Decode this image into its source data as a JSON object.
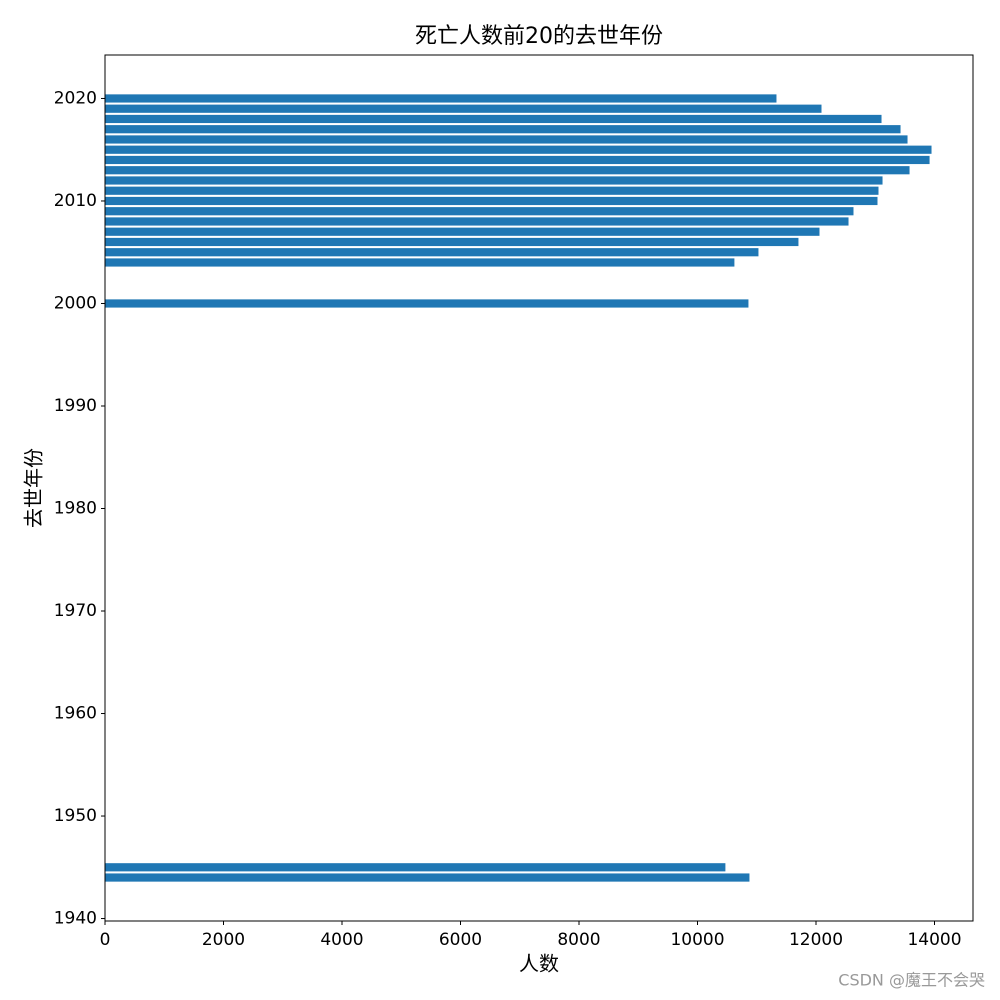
{
  "chart_data": {
    "type": "barh",
    "title": "死亡人数前20的去世年份",
    "xlabel": "人数",
    "ylabel": "去世年份",
    "y": [
      1944,
      1945,
      2000,
      2004,
      2005,
      2006,
      2007,
      2008,
      2009,
      2010,
      2011,
      2012,
      2013,
      2014,
      2015,
      2016,
      2017,
      2018,
      2019,
      2020
    ],
    "values": [
      10877,
      10471,
      10860,
      10623,
      11029,
      11704,
      12059,
      12549,
      12633,
      13038,
      13055,
      13123,
      13579,
      13917,
      13950,
      13545,
      13427,
      13106,
      12093,
      11333
    ],
    "color": "#1f77b4",
    "bar_height": 0.8,
    "xlim": [
      0,
      14650
    ],
    "xticks": [
      0,
      2000,
      4000,
      6000,
      8000,
      10000,
      12000,
      14000
    ],
    "ylim": [
      1939.76,
      2024.24
    ],
    "yticks": [
      1940,
      1950,
      1960,
      1970,
      1980,
      1990,
      2000,
      2010,
      2020
    ],
    "watermark": "CSDN @魔王不会哭"
  }
}
